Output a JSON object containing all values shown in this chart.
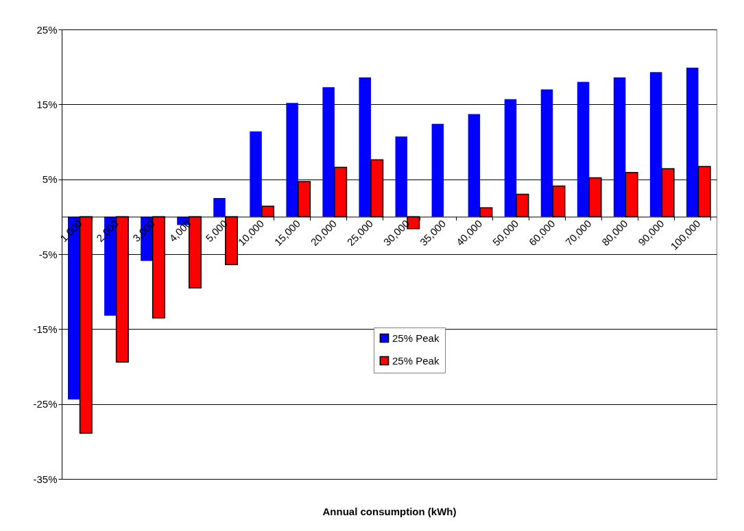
{
  "chart_data": {
    "type": "bar",
    "xlabel": "Annual consumption (kWh)",
    "categories": [
      "1,000",
      "2,000",
      "3,000",
      "4,000",
      "5,000",
      "10,000",
      "15,000",
      "20,000",
      "25,000",
      "30,000",
      "35,000",
      "40,000",
      "50,000",
      "60,000",
      "70,000",
      "80,000",
      "90,000",
      "100,000"
    ],
    "series": [
      {
        "name": "25% Peak",
        "color": "#0000ff",
        "values": [
          -24.4,
          -13.2,
          -5.9,
          -1.1,
          2.5,
          11.4,
          15.2,
          17.3,
          18.6,
          10.7,
          12.4,
          13.7,
          15.7,
          17.0,
          18.0,
          18.6,
          19.3,
          19.9
        ]
      },
      {
        "name": "25% Peak",
        "color": "#ff0000",
        "values": [
          -28.9,
          -19.4,
          -13.5,
          -9.5,
          -6.4,
          1.4,
          4.7,
          6.6,
          7.6,
          -1.6,
          null,
          1.2,
          3.0,
          4.1,
          5.2,
          5.9,
          6.4,
          6.7
        ]
      }
    ],
    "ylim": [
      -35,
      25
    ],
    "yticks": [
      {
        "value": -35,
        "label": "-35%"
      },
      {
        "value": -25,
        "label": "-25%"
      },
      {
        "value": -15,
        "label": "-15%"
      },
      {
        "value": -5,
        "label": "-5%"
      },
      {
        "value": 5,
        "label": "5%"
      },
      {
        "value": 15,
        "label": "15%"
      },
      {
        "value": 25,
        "label": "25%"
      }
    ],
    "grid": true,
    "legend": "bottom"
  }
}
